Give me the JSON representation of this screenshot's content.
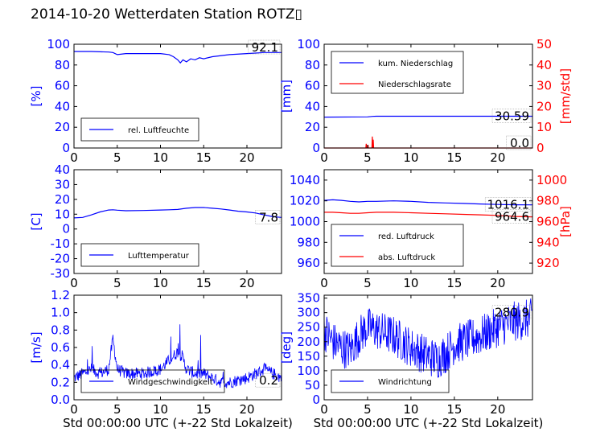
{
  "title": "2014-10-20 Wetterdaten Station ROTZ▯",
  "colors": {
    "primary": "#0000ff",
    "secondary": "#ff0000",
    "frame": "#000000"
  },
  "chart_data": [
    {
      "id": "humidity",
      "type": "line",
      "xlabel": "",
      "ylabel": "[%]",
      "xlim": [
        0,
        24
      ],
      "ylim": [
        0,
        100
      ],
      "yticks": [
        0,
        20,
        40,
        60,
        80,
        100
      ],
      "xticks": [
        0,
        5,
        10,
        15,
        20
      ],
      "legend": [
        "rel. Luftfeuchte"
      ],
      "legend_position": "lower-left",
      "last_value_label": "92.1",
      "series": [
        {
          "name": "rel. Luftfeuchte",
          "axis": "left",
          "x": [
            0,
            2,
            4,
            4.5,
            5,
            6,
            8,
            10,
            11,
            11.5,
            12,
            12.3,
            12.6,
            13,
            13.5,
            14,
            14.5,
            15,
            16,
            18,
            20,
            22,
            24
          ],
          "y": [
            93,
            93,
            92.5,
            92,
            90,
            91,
            91,
            91,
            90,
            88,
            85,
            82,
            85,
            83,
            86,
            85,
            87,
            86,
            88,
            90,
            91,
            92,
            92
          ]
        }
      ]
    },
    {
      "id": "precip",
      "type": "line",
      "xlabel": "",
      "ylabel": "[mm]",
      "y2label": "[mm/std]",
      "xlim": [
        0,
        24
      ],
      "ylim": [
        0,
        100
      ],
      "y2lim": [
        0,
        50
      ],
      "yticks": [
        0,
        20,
        40,
        60,
        80,
        100
      ],
      "y2ticks": [
        0,
        10,
        20,
        30,
        40,
        50
      ],
      "xticks": [
        0,
        5,
        10,
        15,
        20
      ],
      "legend": [
        "kum. Niederschlag",
        "Niederschlagsrate"
      ],
      "legend_position": "upper-left",
      "last_value_labels": [
        "30.59",
        "0.0"
      ],
      "series": [
        {
          "name": "kum. Niederschlag",
          "axis": "left",
          "x": [
            0,
            5,
            5.6,
            6,
            24
          ],
          "y": [
            29.8,
            30.0,
            30.5,
            30.59,
            30.59
          ]
        },
        {
          "name": "Niederschlagsrate",
          "axis": "right",
          "x": [
            0,
            4.8,
            4.85,
            4.9,
            5.0,
            5.05,
            5.1,
            5.5,
            5.55,
            5.6,
            5.65,
            5.7,
            24
          ],
          "y": [
            0,
            0,
            2,
            0,
            0,
            1.5,
            0,
            0,
            5.5,
            0,
            4,
            0,
            0
          ]
        }
      ]
    },
    {
      "id": "temperature",
      "type": "line",
      "xlabel": "",
      "ylabel": "[C]",
      "xlim": [
        0,
        24
      ],
      "ylim": [
        -30,
        40
      ],
      "yticks": [
        -30,
        -20,
        -10,
        0,
        10,
        20,
        30,
        40
      ],
      "xticks": [
        0,
        5,
        10,
        15,
        20
      ],
      "legend": [
        "Lufttemperatur"
      ],
      "legend_position": "lower-left",
      "last_value_label": "7.8",
      "series": [
        {
          "name": "Lufttemperatur",
          "axis": "left",
          "x": [
            0,
            1,
            2,
            3,
            4,
            4.5,
            5,
            6,
            8,
            10,
            11,
            12,
            13,
            14,
            15,
            16,
            17,
            18,
            19,
            20,
            21,
            22,
            23,
            24
          ],
          "y": [
            7.5,
            7.8,
            9.5,
            11.5,
            12.8,
            13.0,
            12.7,
            12.3,
            12.5,
            12.8,
            13.0,
            13.2,
            14.0,
            14.5,
            14.5,
            14.0,
            13.5,
            12.8,
            12.0,
            11.5,
            10.8,
            9.5,
            8.3,
            7.8
          ]
        }
      ]
    },
    {
      "id": "pressure",
      "type": "line",
      "xlabel": "",
      "ylabel": "",
      "y2label": "[hPa]",
      "xlim": [
        0,
        24
      ],
      "ylim": [
        950,
        1050
      ],
      "y2lim": [
        910,
        1010
      ],
      "yticks": [
        960,
        980,
        1000,
        1020,
        1040
      ],
      "y2ticks": [
        920,
        940,
        960,
        980,
        1000
      ],
      "xticks": [
        0,
        5,
        10,
        15,
        20
      ],
      "legend": [
        "red. Luftdruck",
        "abs. Luftdruck"
      ],
      "legend_position": "lower-left",
      "last_value_labels": [
        "1016.1",
        "964.6"
      ],
      "series": [
        {
          "name": "red. Luftdruck",
          "axis": "left",
          "x": [
            0,
            1,
            2,
            3,
            4,
            5,
            6,
            8,
            10,
            12,
            14,
            16,
            18,
            20,
            22,
            24
          ],
          "y": [
            1020.5,
            1021,
            1020.5,
            1019.5,
            1019,
            1019.5,
            1019.5,
            1020,
            1019.5,
            1018.5,
            1018,
            1017.5,
            1017,
            1016.5,
            1016.2,
            1016.1
          ]
        },
        {
          "name": "abs. Luftdruck",
          "axis": "right",
          "x": [
            0,
            1,
            2,
            3,
            4,
            5,
            6,
            8,
            10,
            12,
            14,
            16,
            18,
            20,
            22,
            24
          ],
          "y": [
            969,
            969,
            968.5,
            968,
            968,
            968.5,
            969,
            969,
            968.5,
            968,
            967.5,
            967,
            966.5,
            966,
            965,
            964.6
          ]
        }
      ]
    },
    {
      "id": "windspeed",
      "type": "line",
      "xlabel": "Std 00:00:00 UTC (+-22 Std Lokalzeit)",
      "ylabel": "[m/s]",
      "xlim": [
        0,
        24
      ],
      "ylim": [
        0,
        1.2
      ],
      "yticks": [
        "0.0",
        "0.2",
        "0.4",
        "0.6",
        "0.8",
        "1.0",
        "1.2"
      ],
      "xticks": [
        0,
        5,
        10,
        15,
        20
      ],
      "legend": [
        "Windgeschwindigkeit"
      ],
      "legend_position": "lower-left",
      "last_value_label": "0.2",
      "series": [
        {
          "name": "Windgeschwindigkeit",
          "axis": "left",
          "noise": true,
          "x": [
            0,
            1,
            2,
            3,
            4,
            4.5,
            5,
            6,
            8,
            10,
            12,
            12.5,
            13,
            14,
            15,
            16,
            17,
            18,
            20,
            21,
            22,
            23,
            24
          ],
          "y": [
            0.25,
            0.3,
            0.35,
            0.3,
            0.35,
            0.7,
            0.35,
            0.3,
            0.3,
            0.35,
            0.55,
            0.5,
            0.35,
            0.3,
            0.3,
            0.25,
            0.2,
            0.2,
            0.25,
            0.3,
            0.35,
            0.3,
            0.25
          ]
        }
      ]
    },
    {
      "id": "winddir",
      "type": "line",
      "xlabel": "Std 00:00:00 UTC (+-22 Std Lokalzeit)",
      "ylabel": "[deg]",
      "xlim": [
        0,
        24
      ],
      "ylim": [
        0,
        360
      ],
      "yticks": [
        0,
        50,
        100,
        150,
        200,
        250,
        300,
        350
      ],
      "xticks": [
        0,
        5,
        10,
        15,
        20
      ],
      "legend": [
        "Windrichtung"
      ],
      "legend_position": "lower-left",
      "last_value_label": "280.9",
      "series": [
        {
          "name": "Windrichtung",
          "axis": "left",
          "noise": true,
          "x": [
            0,
            1,
            2,
            3,
            4,
            5,
            6,
            7,
            8,
            10,
            12,
            13,
            14,
            15,
            16,
            18,
            20,
            22,
            24
          ],
          "y": [
            240,
            200,
            180,
            170,
            220,
            250,
            240,
            230,
            220,
            180,
            150,
            140,
            160,
            190,
            200,
            220,
            250,
            270,
            280
          ]
        }
      ]
    }
  ]
}
